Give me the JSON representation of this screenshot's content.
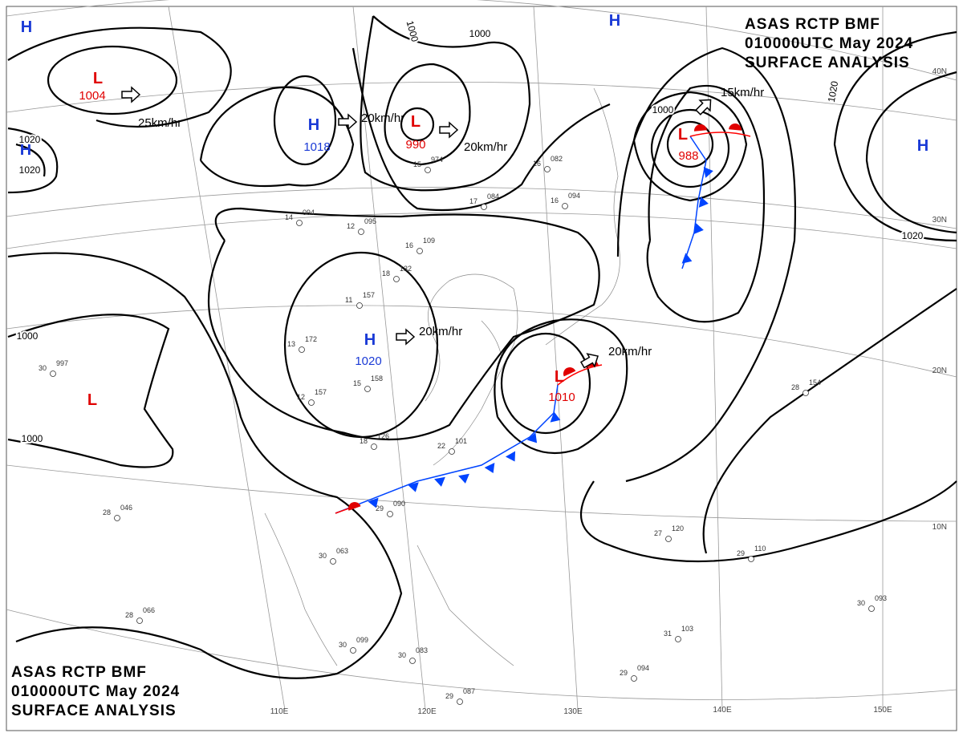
{
  "title_block": {
    "station": "ASAS RCTP BMF",
    "time": "010000UTC May 2024",
    "product": "SURFACE ANALYSIS"
  },
  "centers": [
    {
      "kind": "H"
    },
    {
      "kind": "L",
      "pressure": 1004
    },
    {
      "kind": "H"
    },
    {
      "kind": "H",
      "pressure": 1018
    },
    {
      "kind": "L",
      "pressure": 990
    },
    {
      "kind": "H"
    },
    {
      "kind": "L",
      "pressure": 988
    },
    {
      "kind": "H"
    },
    {
      "kind": "H",
      "pressure": 1020
    },
    {
      "kind": "L"
    },
    {
      "kind": "L",
      "pressure": 1010
    }
  ],
  "isobar_labels": [
    1000,
    1000,
    1020,
    1020,
    1000,
    1020,
    1020,
    1000,
    1000
  ],
  "movements": [
    "25km/hr",
    "20km/hr",
    "20km/hr",
    "15km/hr",
    "20km/hr",
    "20km/hr"
  ],
  "latitudes": [
    "40N",
    "30N",
    "20N",
    "10N"
  ],
  "longitudes": [
    "110E",
    "120E",
    "130E",
    "140E",
    "150E"
  ],
  "stations": [
    {
      "temp": "15",
      "pressure": "974"
    },
    {
      "temp": "17",
      "pressure": "084"
    },
    {
      "temp": "14",
      "pressure": "094"
    },
    {
      "temp": "12",
      "pressure": "095"
    },
    {
      "temp": "16",
      "pressure": "109"
    },
    {
      "temp": "11",
      "pressure": "157"
    },
    {
      "temp": "18",
      "pressure": "132"
    },
    {
      "temp": "13",
      "pressure": "172"
    },
    {
      "temp": "15",
      "pressure": "158"
    },
    {
      "temp": "12",
      "pressure": "157"
    },
    {
      "temp": "18",
      "pressure": "126"
    },
    {
      "temp": "22",
      "pressure": "101"
    },
    {
      "temp": "29",
      "pressure": "090"
    },
    {
      "temp": "30",
      "pressure": "063"
    },
    {
      "temp": "28",
      "pressure": "046"
    },
    {
      "temp": "30",
      "pressure": "997"
    },
    {
      "temp": "28",
      "pressure": "066"
    },
    {
      "temp": "30",
      "pressure": "099"
    },
    {
      "temp": "30",
      "pressure": "083"
    },
    {
      "temp": "29",
      "pressure": "087"
    },
    {
      "temp": "28",
      "pressure": "154"
    },
    {
      "temp": "29",
      "pressure": "110"
    },
    {
      "temp": "27",
      "pressure": "120"
    },
    {
      "temp": "31",
      "pressure": "103"
    },
    {
      "temp": "30",
      "pressure": "093"
    },
    {
      "temp": "29",
      "pressure": "094"
    },
    {
      "temp": "16",
      "pressure": "094"
    },
    {
      "temp": "16",
      "pressure": "082"
    }
  ]
}
